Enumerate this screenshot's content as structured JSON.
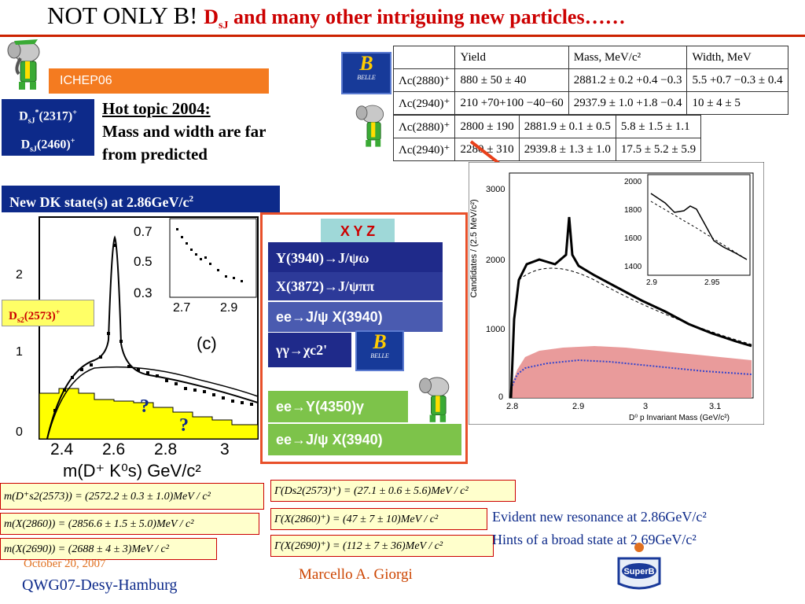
{
  "title": {
    "prefix": "NOT ONLY B! ",
    "d": "D",
    "sub": "sJ",
    "rest": " and many other intriguing new particles……"
  },
  "ichep": "ICHEP06",
  "dsj": {
    "line1": "D",
    "line1_sub": "sJ",
    "line1_sup": "*",
    "line1_rest": "(2317)",
    "line1_charge": "+",
    "line2": "D",
    "line2_sub": "sJ",
    "line2_rest": "(2460)",
    "line2_charge": "+"
  },
  "hot_topic": {
    "heading": "Hot topic 2004:",
    "line2": "Mass and width are far",
    "line3": "from predicted"
  },
  "new_dk": "New DK state(s) at 2.86GeV/c",
  "new_dk_sup": "2",
  "ds2573": {
    "d": "D",
    "sub": "s2",
    "rest": "(2573)",
    "charge": "+"
  },
  "xyz": {
    "label": "X Y Z",
    "items": [
      "Y(3940)→J/ψω",
      "X(3872)→J/ψππ",
      "ee→J/ψ X(3940)",
      "γγ→χc2'",
      "ee→Y(4350)γ",
      "ee→J/ψ X(3940)"
    ]
  },
  "belle_logo": {
    "letter": "B",
    "text": "BELLE"
  },
  "table_top": {
    "headers": [
      "",
      "Yield",
      "Mass, MeV/c²",
      "Width, MeV"
    ],
    "rows": [
      [
        "Λc(2880)⁺",
        "880 ± 50 ± 40",
        "2881.2 ± 0.2 +0.4 −0.3",
        "5.5 +0.7 −0.3 ± 0.4"
      ],
      [
        "Λc(2940)⁺",
        "210 +70+100 −40−60",
        "2937.9 ± 1.0 +1.8 −0.4",
        "10 ± 4 ± 5"
      ]
    ]
  },
  "table_bottom": {
    "rows": [
      [
        "Λc(2880)⁺",
        "2800 ± 190",
        "2881.9 ± 0.1 ± 0.5",
        "5.8 ± 1.5 ± 1.1"
      ],
      [
        "Λc(2940)⁺",
        "2280 ± 310",
        "2939.8 ± 1.3 ± 1.0",
        "17.5 ± 5.2 ± 5.9"
      ]
    ]
  },
  "plot_left": {
    "ytick": [
      "0",
      "1",
      "2"
    ],
    "xtick": [
      "2.4",
      "2.6",
      "2.8",
      "3"
    ],
    "xlabel": "m(D⁺ K⁰s) GeV/c²",
    "panel": "(c)",
    "inset_y": [
      "0.7",
      "0.5",
      "0.3"
    ],
    "inset_x": [
      "2.7",
      "2.9"
    ],
    "question": "?"
  },
  "plot_right": {
    "ylabel": "Candidates / (2.5 MeV/c²)",
    "yticks": [
      "0",
      "1000",
      "2000",
      "3000"
    ],
    "xticks": [
      "2.8",
      "2.9",
      "3",
      "3.1"
    ],
    "xlabel": "D⁰ p Invariant Mass (GeV/c²)",
    "inset_y": [
      "1400",
      "1600",
      "1800",
      "2000"
    ],
    "inset_x": [
      "2.9",
      "2.95"
    ]
  },
  "formulas_left": [
    "m(D⁺s2(2573)) = (2572.2 ± 0.3 ± 1.0)MeV / c²",
    "m(X(2860)) = (2856.6 ± 1.5 ± 5.0)MeV / c²",
    "m(X(2690)) = (2688 ± 4 ± 3)MeV / c²"
  ],
  "formulas_right": [
    "Γ(Ds2(2573)⁺) = (27.1 ± 0.6 ± 5.6)MeV / c²",
    "Γ(X(2860)⁺) = (47 ± 7 ± 10)MeV / c²",
    "Γ(X(2690)⁺) = (112 ± 7 ± 36)MeV / c²"
  ],
  "evident": "Evident new resonance at 2.86GeV/c²",
  "hints": "Hints of a broad state at 2.69GeV/c²",
  "footer": {
    "date": "October 20, 2007",
    "venue": "QWG07-Desy-Hamburg",
    "author": "Marcello A. Giorgi"
  },
  "superb_logo": "SuperB"
}
